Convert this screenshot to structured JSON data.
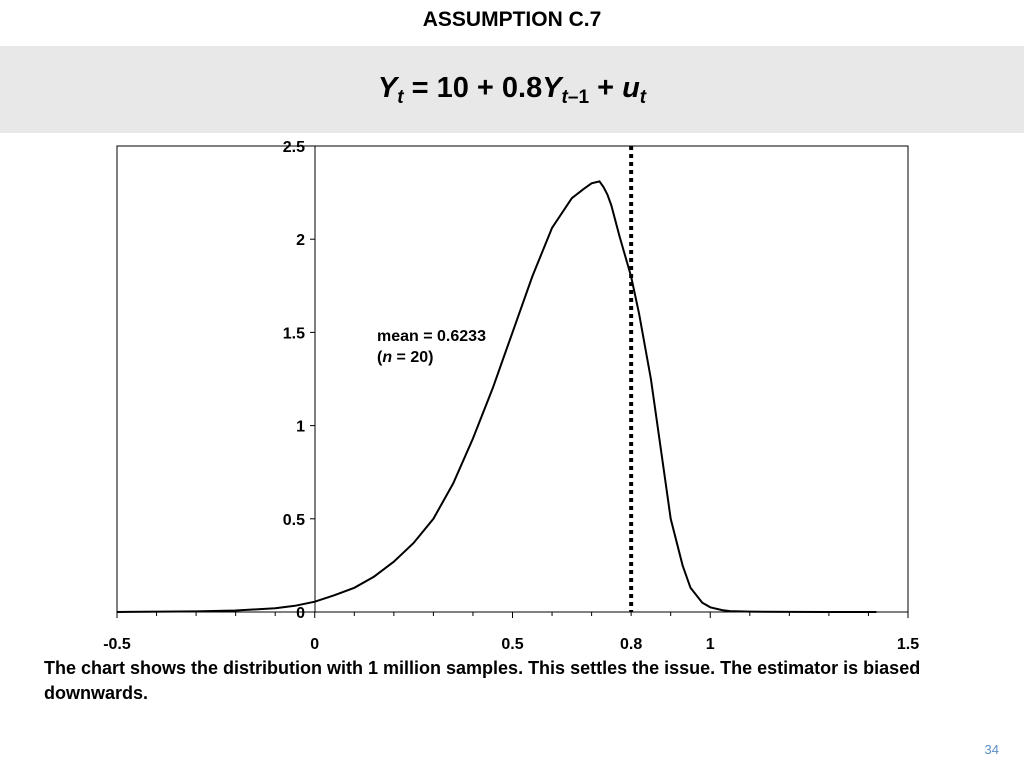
{
  "slide": {
    "title": "ASSUMPTION C.7",
    "equation": {
      "lhs": "Y",
      "lhs_sub": "t",
      "eq_text": " = 10 + 0.8",
      "y2": "Y",
      "y2_sub_t": "t",
      "y2_sub_rest": "–1",
      "plus": " + ",
      "u": "u",
      "u_sub": "t"
    },
    "annotation": {
      "line1": "mean = 0.6233",
      "line2_open": "(",
      "line2_n": "n",
      "line2_rest": " = 20)"
    },
    "caption": "The chart shows the distribution with 1 million samples.  This settles the issue.  The estimator is biased downwards.",
    "page_number": "34"
  },
  "chart_data": {
    "type": "line",
    "xlim": [
      -0.5,
      1.5
    ],
    "ylim": [
      0,
      2.5
    ],
    "x_ticks": [
      {
        "value": -0.5,
        "label": "-0.5"
      },
      {
        "value": 0,
        "label": "0"
      },
      {
        "value": 0.5,
        "label": "0.5"
      },
      {
        "value": 0.8,
        "label": "0.8"
      },
      {
        "value": 1,
        "label": "1"
      },
      {
        "value": 1.5,
        "label": "1.5"
      }
    ],
    "y_ticks": [
      {
        "value": 0,
        "label": "0"
      },
      {
        "value": 0.5,
        "label": "0.5"
      },
      {
        "value": 1,
        "label": "1"
      },
      {
        "value": 1.5,
        "label": "1.5"
      },
      {
        "value": 2,
        "label": "2"
      },
      {
        "value": 2.5,
        "label": "2.5"
      }
    ],
    "reference_line": {
      "x": 0.8,
      "style": "dotted"
    },
    "grid": false,
    "series": [
      {
        "color": "#000000",
        "x": [
          -0.5,
          -0.3,
          -0.2,
          -0.1,
          -0.05,
          0,
          0.05,
          0.1,
          0.15,
          0.2,
          0.25,
          0.3,
          0.35,
          0.4,
          0.45,
          0.5,
          0.55,
          0.6,
          0.65,
          0.68,
          0.7,
          0.72,
          0.73,
          0.74,
          0.75,
          0.77,
          0.8,
          0.82,
          0.85,
          0.88,
          0.9,
          0.93,
          0.95,
          0.98,
          1.0,
          1.03,
          1.05,
          1.1,
          1.2,
          1.3,
          1.42
        ],
        "y": [
          0,
          0.003,
          0.008,
          0.02,
          0.033,
          0.055,
          0.09,
          0.13,
          0.19,
          0.27,
          0.37,
          0.5,
          0.69,
          0.93,
          1.2,
          1.5,
          1.8,
          2.06,
          2.22,
          2.27,
          2.3,
          2.31,
          2.28,
          2.24,
          2.18,
          2.02,
          1.8,
          1.6,
          1.25,
          0.8,
          0.5,
          0.25,
          0.13,
          0.05,
          0.025,
          0.01,
          0.005,
          0.002,
          0.0005,
          0,
          0
        ]
      }
    ]
  }
}
